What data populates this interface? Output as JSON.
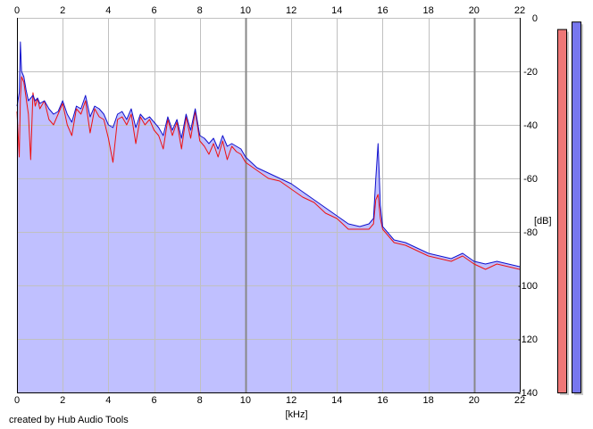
{
  "chart_data": {
    "type": "area",
    "title": "",
    "xlabel": "[kHz]",
    "ylabel": "[dB]",
    "xlim": [
      0,
      22
    ],
    "ylim": [
      -140,
      0
    ],
    "x_ticks": [
      0,
      2,
      4,
      6,
      8,
      10,
      12,
      14,
      16,
      18,
      20,
      22
    ],
    "y_ticks": [
      0,
      -20,
      -40,
      -60,
      -80,
      -100,
      -120,
      -140
    ],
    "grid": true,
    "series": [
      {
        "color": "#ee1111",
        "x": [
          0.0,
          0.1,
          0.15,
          0.2,
          0.3,
          0.4,
          0.5,
          0.6,
          0.7,
          0.8,
          0.9,
          1.0,
          1.2,
          1.4,
          1.6,
          1.8,
          2.0,
          2.2,
          2.4,
          2.6,
          2.8,
          3.0,
          3.2,
          3.4,
          3.6,
          3.8,
          4.0,
          4.2,
          4.4,
          4.6,
          4.8,
          5.0,
          5.2,
          5.4,
          5.6,
          5.8,
          6.0,
          6.2,
          6.4,
          6.6,
          6.8,
          7.0,
          7.2,
          7.4,
          7.6,
          7.8,
          8.0,
          8.2,
          8.4,
          8.6,
          8.8,
          9.0,
          9.2,
          9.4,
          9.6,
          9.8,
          10.0,
          10.5,
          11.0,
          11.5,
          12.0,
          12.5,
          13.0,
          13.5,
          14.0,
          14.5,
          15.0,
          15.4,
          15.6,
          15.7,
          15.8,
          15.9,
          16.0,
          16.2,
          16.5,
          17.0,
          17.5,
          18.0,
          18.5,
          19.0,
          19.5,
          20.0,
          20.5,
          21.0,
          21.5,
          22.0
        ],
        "values": [
          -35,
          -52,
          -30,
          -22,
          -24,
          -30,
          -36,
          -53,
          -28,
          -33,
          -30,
          -34,
          -31,
          -38,
          -40,
          -36,
          -32,
          -40,
          -44,
          -34,
          -36,
          -31,
          -43,
          -34,
          -37,
          -38,
          -45,
          -54,
          -38,
          -37,
          -40,
          -36,
          -47,
          -37,
          -40,
          -38,
          -42,
          -44,
          -49,
          -38,
          -44,
          -39,
          -49,
          -37,
          -45,
          -35,
          -46,
          -48,
          -51,
          -47,
          -52,
          -46,
          -53,
          -48,
          -50,
          -51,
          -54,
          -57,
          -60,
          -61,
          -64,
          -67,
          -69,
          -73,
          -75,
          -79,
          -79,
          -79,
          -77,
          -68,
          -66,
          -75,
          -79,
          -81,
          -84,
          -85,
          -87,
          -89,
          -90,
          -91,
          -89,
          -92,
          -94,
          -92,
          -93,
          -94
        ]
      },
      {
        "color": "#1111cc",
        "x": [
          0.0,
          0.1,
          0.15,
          0.2,
          0.3,
          0.4,
          0.5,
          0.6,
          0.7,
          0.8,
          0.9,
          1.0,
          1.2,
          1.4,
          1.6,
          1.8,
          2.0,
          2.2,
          2.4,
          2.6,
          2.8,
          3.0,
          3.2,
          3.4,
          3.6,
          3.8,
          4.0,
          4.2,
          4.4,
          4.6,
          4.8,
          5.0,
          5.2,
          5.4,
          5.6,
          5.8,
          6.0,
          6.2,
          6.4,
          6.6,
          6.8,
          7.0,
          7.2,
          7.4,
          7.6,
          7.8,
          8.0,
          8.2,
          8.4,
          8.6,
          8.8,
          9.0,
          9.2,
          9.4,
          9.6,
          9.8,
          10.0,
          10.5,
          11.0,
          11.5,
          12.0,
          12.5,
          13.0,
          13.5,
          14.0,
          14.5,
          15.0,
          15.4,
          15.6,
          15.7,
          15.8,
          15.9,
          16.0,
          16.2,
          16.5,
          17.0,
          17.5,
          18.0,
          18.5,
          19.0,
          19.5,
          20.0,
          20.5,
          21.0,
          21.5,
          22.0
        ],
        "values": [
          -33,
          -28,
          -9,
          -20,
          -22,
          -27,
          -31,
          -30,
          -29,
          -31,
          -30,
          -32,
          -31,
          -34,
          -36,
          -35,
          -31,
          -36,
          -39,
          -33,
          -34,
          -29,
          -37,
          -33,
          -34,
          -36,
          -40,
          -41,
          -36,
          -35,
          -38,
          -34,
          -41,
          -36,
          -38,
          -37,
          -39,
          -41,
          -44,
          -37,
          -42,
          -38,
          -45,
          -36,
          -42,
          -34,
          -44,
          -45,
          -47,
          -45,
          -49,
          -44,
          -48,
          -47,
          -48,
          -49,
          -52,
          -56,
          -58,
          -60,
          -62,
          -65,
          -68,
          -71,
          -74,
          -77,
          -78,
          -77,
          -75,
          -60,
          -47,
          -70,
          -78,
          -80,
          -83,
          -84,
          -86,
          -88,
          -89,
          -90,
          -88,
          -91,
          -92,
          -91,
          -92,
          -93
        ]
      }
    ],
    "level_meters": [
      {
        "color": "#ee7777",
        "level": 0.97
      },
      {
        "color": "#7777ee",
        "level": 0.99
      }
    ],
    "colors": {
      "fill": "#c0c0ff",
      "grid_light": "#c0c0c0",
      "grid_major": "#888888",
      "axis": "#000000"
    }
  },
  "credit": "created by Hub Audio Tools"
}
